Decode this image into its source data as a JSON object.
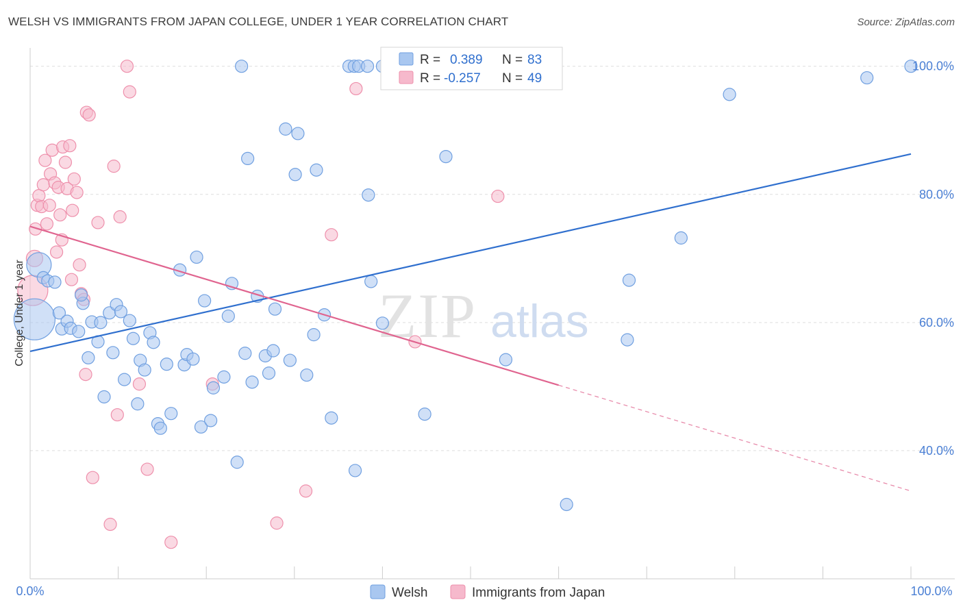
{
  "header": {
    "title": "WELSH VS IMMIGRANTS FROM JAPAN COLLEGE, UNDER 1 YEAR CORRELATION CHART",
    "source": "Source: ZipAtlas.com"
  },
  "watermark": {
    "zip": "ZIP",
    "atlas": "atlas"
  },
  "colors": {
    "welsh_fill": "#a9c7f0",
    "welsh_stroke": "#6f9fe0",
    "welsh_line": "#2f6fce",
    "japan_fill": "#f6b9cc",
    "japan_stroke": "#ee8fab",
    "japan_line": "#e0648f",
    "tick_label": "#4a7fd4",
    "grid": "#dddddd"
  },
  "chart_data": {
    "type": "scatter",
    "title": "WELSH VS IMMIGRANTS FROM JAPAN COLLEGE, UNDER 1 YEAR CORRELATION CHART",
    "xlabel": "",
    "ylabel": "College, Under 1 year",
    "xlim": [
      0,
      100
    ],
    "ylim": [
      20,
      102
    ],
    "x_tick_labels": [
      "0.0%",
      "100.0%"
    ],
    "y_ticks": [
      {
        "value": 40,
        "label": "40.0%"
      },
      {
        "value": 60,
        "label": "60.0%"
      },
      {
        "value": 80,
        "label": "80.0%"
      },
      {
        "value": 100,
        "label": "100.0%"
      }
    ],
    "grid": true,
    "legend_position": "top-center",
    "legend": [
      {
        "series": "Welsh",
        "r_label": "R =",
        "r_value": "0.389",
        "n_label": "N =",
        "n_value": "83"
      },
      {
        "series": "Immigrants from Japan",
        "r_label": "R =",
        "r_value": "-0.257",
        "n_label": "N =",
        "n_value": "49"
      }
    ],
    "series": [
      {
        "name": "Welsh",
        "trend": {
          "x0": 0,
          "y0": 55.5,
          "x1": 100,
          "y1": 86.3,
          "dashed_from": null
        },
        "points": [
          [
            1,
            69,
            18
          ],
          [
            0.5,
            60.5,
            30
          ],
          [
            1.5,
            67,
            9
          ],
          [
            2,
            66.5,
            9
          ],
          [
            2.8,
            66.3,
            9
          ],
          [
            3.3,
            61.5,
            9
          ],
          [
            3.6,
            59,
            9
          ],
          [
            4.2,
            60.2,
            9
          ],
          [
            4.6,
            59.1,
            9
          ],
          [
            5.5,
            58.6,
            9
          ],
          [
            6,
            63,
            9
          ],
          [
            5.8,
            64.3,
            9
          ],
          [
            6.6,
            54.5,
            9
          ],
          [
            7,
            60.1,
            9
          ],
          [
            7.7,
            57,
            9
          ],
          [
            8,
            60,
            9
          ],
          [
            8.4,
            48.4,
            9
          ],
          [
            9,
            61.5,
            9
          ],
          [
            9.4,
            55.3,
            9
          ],
          [
            9.8,
            62.8,
            9
          ],
          [
            10.3,
            61.7,
            9
          ],
          [
            10.7,
            51.1,
            9
          ],
          [
            11.3,
            60.3,
            9
          ],
          [
            11.7,
            57.5,
            9
          ],
          [
            12.2,
            47.3,
            9
          ],
          [
            12.5,
            54.1,
            9
          ],
          [
            13,
            52.6,
            9
          ],
          [
            13.6,
            58.4,
            9
          ],
          [
            14,
            56.9,
            9
          ],
          [
            14.5,
            44.2,
            9
          ],
          [
            14.8,
            43.5,
            9
          ],
          [
            15.5,
            53.5,
            9
          ],
          [
            16,
            45.8,
            9
          ],
          [
            17,
            68.2,
            9
          ],
          [
            17.5,
            53.4,
            9
          ],
          [
            17.8,
            55,
            9
          ],
          [
            18.5,
            54.3,
            9
          ],
          [
            18.9,
            70.2,
            9
          ],
          [
            19.4,
            43.7,
            9
          ],
          [
            19.8,
            63.4,
            9
          ],
          [
            20.5,
            44.7,
            9
          ],
          [
            20.8,
            49.8,
            9
          ],
          [
            22,
            51.5,
            9
          ],
          [
            22.5,
            61,
            9
          ],
          [
            22.9,
            66.1,
            9
          ],
          [
            23.5,
            38.2,
            9
          ],
          [
            24,
            100,
            9
          ],
          [
            24.4,
            55.2,
            9
          ],
          [
            24.7,
            85.6,
            9
          ],
          [
            25.2,
            50.7,
            9
          ],
          [
            25.8,
            64.1,
            9
          ],
          [
            26.7,
            54.8,
            9
          ],
          [
            27.1,
            52.1,
            9
          ],
          [
            27.6,
            55.6,
            9
          ],
          [
            27.8,
            62.1,
            9
          ],
          [
            29,
            90.2,
            9
          ],
          [
            29.5,
            54.1,
            9
          ],
          [
            30.1,
            83.1,
            9
          ],
          [
            30.4,
            89.5,
            9
          ],
          [
            31.4,
            51.8,
            9
          ],
          [
            32.2,
            58.1,
            9
          ],
          [
            32.5,
            83.8,
            9
          ],
          [
            33.4,
            61.2,
            9
          ],
          [
            34.2,
            45.1,
            9
          ],
          [
            36.2,
            100,
            9
          ],
          [
            36.8,
            100,
            9
          ],
          [
            37.3,
            100,
            9
          ],
          [
            36.9,
            36.9,
            9
          ],
          [
            38.3,
            100,
            9
          ],
          [
            38.4,
            79.9,
            9
          ],
          [
            38.7,
            66.4,
            9
          ],
          [
            40,
            100,
            9
          ],
          [
            40,
            59.9,
            9
          ],
          [
            44.8,
            45.7,
            9
          ],
          [
            47.2,
            85.9,
            9
          ],
          [
            54,
            54.2,
            9
          ],
          [
            60.9,
            31.6,
            9
          ],
          [
            67.8,
            57.3,
            9
          ],
          [
            68,
            66.6,
            9
          ],
          [
            73.9,
            73.2,
            9
          ],
          [
            79.4,
            95.6,
            9
          ],
          [
            95,
            98.2,
            9
          ],
          [
            100,
            100,
            9
          ]
        ]
      },
      {
        "name": "Immigrants from Japan",
        "trend": {
          "x0": 0,
          "y0": 75,
          "x1": 100,
          "y1": 33.7,
          "dashed_from": 60
        },
        "points": [
          [
            0.3,
            65,
            22
          ],
          [
            0.5,
            70,
            12
          ],
          [
            0.6,
            74.6,
            9
          ],
          [
            0.8,
            78.3,
            9
          ],
          [
            1,
            79.8,
            9
          ],
          [
            1.3,
            78.1,
            9
          ],
          [
            1.5,
            81.5,
            9
          ],
          [
            1.7,
            85.3,
            9
          ],
          [
            1.9,
            75.4,
            9
          ],
          [
            2.2,
            78.3,
            9
          ],
          [
            2.3,
            83.2,
            9
          ],
          [
            2.5,
            86.9,
            9
          ],
          [
            2.8,
            81.8,
            9
          ],
          [
            3,
            71,
            9
          ],
          [
            3.2,
            81.1,
            9
          ],
          [
            3.4,
            76.8,
            9
          ],
          [
            3.6,
            72.9,
            9
          ],
          [
            3.7,
            87.4,
            9
          ],
          [
            4,
            85,
            9
          ],
          [
            4.2,
            80.9,
            9
          ],
          [
            4.5,
            87.6,
            9
          ],
          [
            4.7,
            66.7,
            9
          ],
          [
            4.8,
            77.5,
            9
          ],
          [
            5,
            82.4,
            9
          ],
          [
            5.3,
            80.3,
            9
          ],
          [
            5.6,
            69,
            9
          ],
          [
            5.8,
            64.5,
            9
          ],
          [
            6.1,
            63.6,
            9
          ],
          [
            6.3,
            51.9,
            9
          ],
          [
            6.4,
            92.8,
            9
          ],
          [
            6.7,
            92.4,
            9
          ],
          [
            7.1,
            35.8,
            9
          ],
          [
            7.7,
            75.6,
            9
          ],
          [
            9.1,
            28.5,
            9
          ],
          [
            9.5,
            84.4,
            9
          ],
          [
            9.9,
            45.6,
            9
          ],
          [
            10.2,
            76.5,
            9
          ],
          [
            11,
            100,
            9
          ],
          [
            11.3,
            96,
            9
          ],
          [
            12.4,
            50.4,
            9
          ],
          [
            13.3,
            37.1,
            9
          ],
          [
            16,
            25.7,
            9
          ],
          [
            20.7,
            50.4,
            9
          ],
          [
            28,
            28.7,
            9
          ],
          [
            31.3,
            33.7,
            9
          ],
          [
            34.2,
            73.7,
            9
          ],
          [
            37,
            96.5,
            9
          ],
          [
            43.7,
            57,
            9
          ],
          [
            53.1,
            79.7,
            9
          ]
        ]
      }
    ]
  },
  "bottom_legend": [
    {
      "label": "Welsh"
    },
    {
      "label": "Immigrants from Japan"
    }
  ]
}
